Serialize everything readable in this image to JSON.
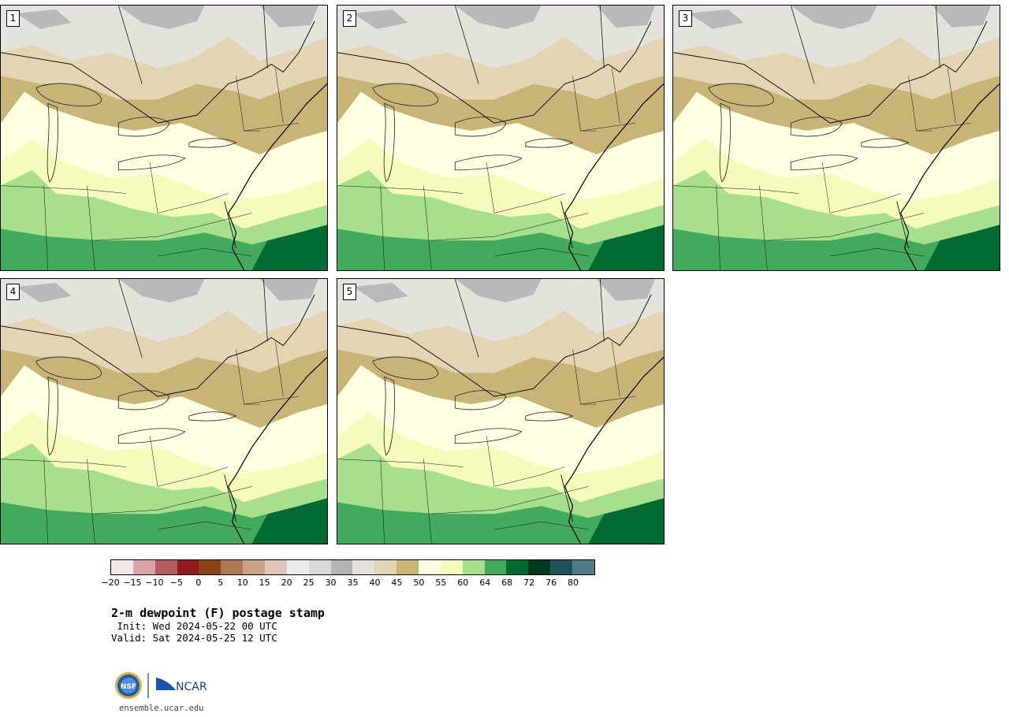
{
  "panels": [
    {
      "label": "1"
    },
    {
      "label": "2"
    },
    {
      "label": "3"
    },
    {
      "label": "4"
    },
    {
      "label": "5"
    }
  ],
  "colorbar": {
    "colors": [
      "#f3e6e6",
      "#d9a3a6",
      "#b25c61",
      "#8c1a1f",
      "#8b4513",
      "#b07850",
      "#c8a286",
      "#e0c5b4",
      "#ebebeb",
      "#d9d9d6",
      "#b4b4b4",
      "#e3e3dc",
      "#e3d4b4",
      "#c9b478",
      "#ffffe2",
      "#f5fbba",
      "#a7df8c",
      "#43a95d",
      "#006b32",
      "#003a1e",
      "#1d5459",
      "#4d7d82"
    ],
    "ticks": [
      "-20",
      "-15",
      "-10",
      "-5",
      "0",
      "5",
      "10",
      "15",
      "20",
      "25",
      "30",
      "35",
      "40",
      "45",
      "50",
      "55",
      "60",
      "64",
      "68",
      "72",
      "76",
      "80"
    ]
  },
  "title": "2-m dewpoint (F) postage stamp",
  "init": " Init: Wed 2024-05-22 00 UTC",
  "valid": "Valid: Sat 2024-05-25 12 UTC",
  "logo": {
    "left_text": "NSF",
    "right_text": "NCAR"
  },
  "url": "ensemble.ucar.edu"
}
